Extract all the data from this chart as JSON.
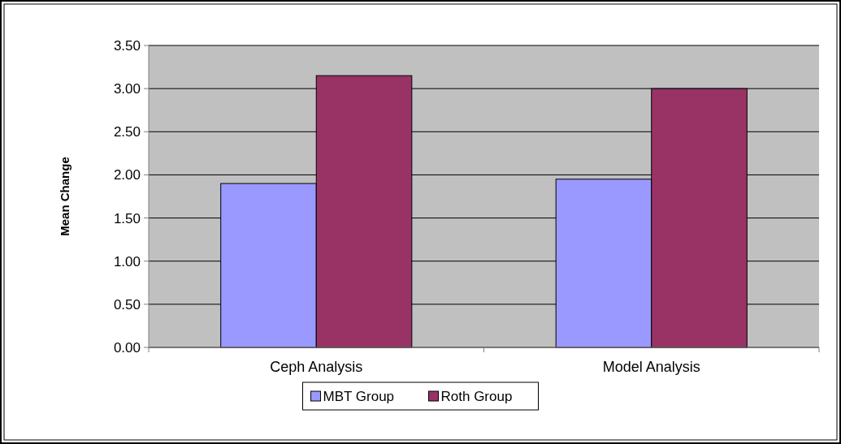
{
  "chart_data": {
    "type": "bar",
    "ylabel": "Mean Change",
    "categories": [
      "Ceph Analysis",
      "Model Analysis"
    ],
    "series": [
      {
        "name": "MBT Group",
        "color": "#9999ff",
        "values": [
          1.9,
          1.95
        ]
      },
      {
        "name": "Roth Group",
        "color": "#993366",
        "values": [
          3.15,
          3.0
        ]
      }
    ],
    "ylim": [
      0,
      3.5
    ],
    "yticks": [
      {
        "value": 0,
        "label": "0.00"
      },
      {
        "value": 0.5,
        "label": "0.50"
      },
      {
        "value": 1,
        "label": "1.00"
      },
      {
        "value": 1.5,
        "label": "1.50"
      },
      {
        "value": 2,
        "label": "2.00"
      },
      {
        "value": 2.5,
        "label": "2.50"
      },
      {
        "value": 3,
        "label": "3.00"
      },
      {
        "value": 3.5,
        "label": "3.50"
      }
    ],
    "grid": "y",
    "legend": "bottom"
  }
}
